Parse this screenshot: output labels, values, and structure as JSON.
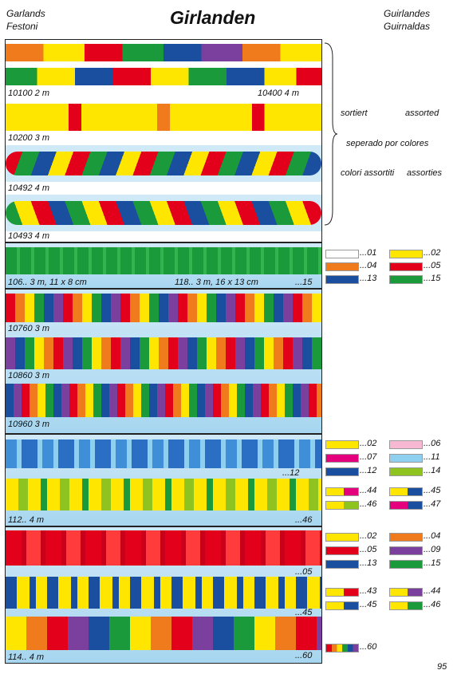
{
  "header": {
    "left1": "Garlands",
    "left2": "Festoni",
    "title": "Girlanden",
    "right1": "Guirlandes",
    "right2": "Guirnaldas"
  },
  "sec1": {
    "l1": "10100   2 m",
    "l2": "10400   4 m",
    "l3": "10200   3 m",
    "l4": "10492   4 m",
    "l5": "10493   4 m",
    "notes": {
      "n1": "sortiert",
      "n2": "assorted",
      "n3": "seperado por colores",
      "n4": "colori assortiti",
      "n5": "assorties"
    }
  },
  "sec2": {
    "l1": "106..   3 m, 11 x 8 cm",
    "l2": "118..     3 m, 16 x 13 cm",
    "l3": "...15",
    "sw": [
      {
        "c": "#ffffff",
        "t": "...01"
      },
      {
        "c": "#ffe600",
        "t": "...02"
      },
      {
        "c": "#f07b1c",
        "t": "...04"
      },
      {
        "c": "#e2001a",
        "t": "...05"
      },
      {
        "c": "#1a4fa0",
        "t": "...13"
      },
      {
        "c": "#1a9a3a",
        "t": "...15"
      }
    ]
  },
  "sec3": {
    "l1": "10760   3 m",
    "l2": "10860   3 m",
    "l3": "10960   3 m"
  },
  "sec4": {
    "l1": "...12",
    "l2": "112..   4 m",
    "l3": "...46",
    "sw": [
      {
        "c": "#ffe600",
        "t": "...02"
      },
      {
        "c": "#f7b8d4",
        "t": "...06"
      },
      {
        "c": "#e5007d",
        "t": "...07"
      },
      {
        "c": "#8fd0f0",
        "t": "...11"
      },
      {
        "c": "#1a4fa0",
        "t": "...12"
      },
      {
        "c": "#8fc31f",
        "t": "...14"
      },
      {
        "c": "#ffe600",
        "c2": "#e5007d",
        "t": "...44"
      },
      {
        "c": "#ffe600",
        "c2": "#1a4fa0",
        "t": "...45"
      },
      {
        "c": "#ffe600",
        "c2": "#8fc31f",
        "t": "...46"
      },
      {
        "c": "#e5007d",
        "c2": "#1a4fa0",
        "t": "...47"
      }
    ]
  },
  "sec5": {
    "l1": "...05",
    "l2": "...45",
    "l3": "114..   4 m",
    "l4": "...60",
    "sw": [
      {
        "c": "#ffe600",
        "t": "...02"
      },
      {
        "c": "#f07b1c",
        "t": "...04"
      },
      {
        "c": "#e2001a",
        "t": "...05"
      },
      {
        "c": "#7b3f9e",
        "t": "...09"
      },
      {
        "c": "#1a4fa0",
        "t": "...13"
      },
      {
        "c": "#1a9a3a",
        "t": "...15"
      },
      {
        "c": "#ffe600",
        "c2": "#e2001a",
        "t": "...43"
      },
      {
        "c": "#ffe600",
        "c2": "#7b3f9e",
        "t": "...44"
      },
      {
        "c": "#ffe600",
        "c2": "#1a4fa0",
        "t": "...45"
      },
      {
        "c": "#ffe600",
        "c2": "#1a9a3a",
        "t": "...46"
      },
      {
        "rainbow": true,
        "t": "...60"
      }
    ]
  },
  "page_number": "95"
}
